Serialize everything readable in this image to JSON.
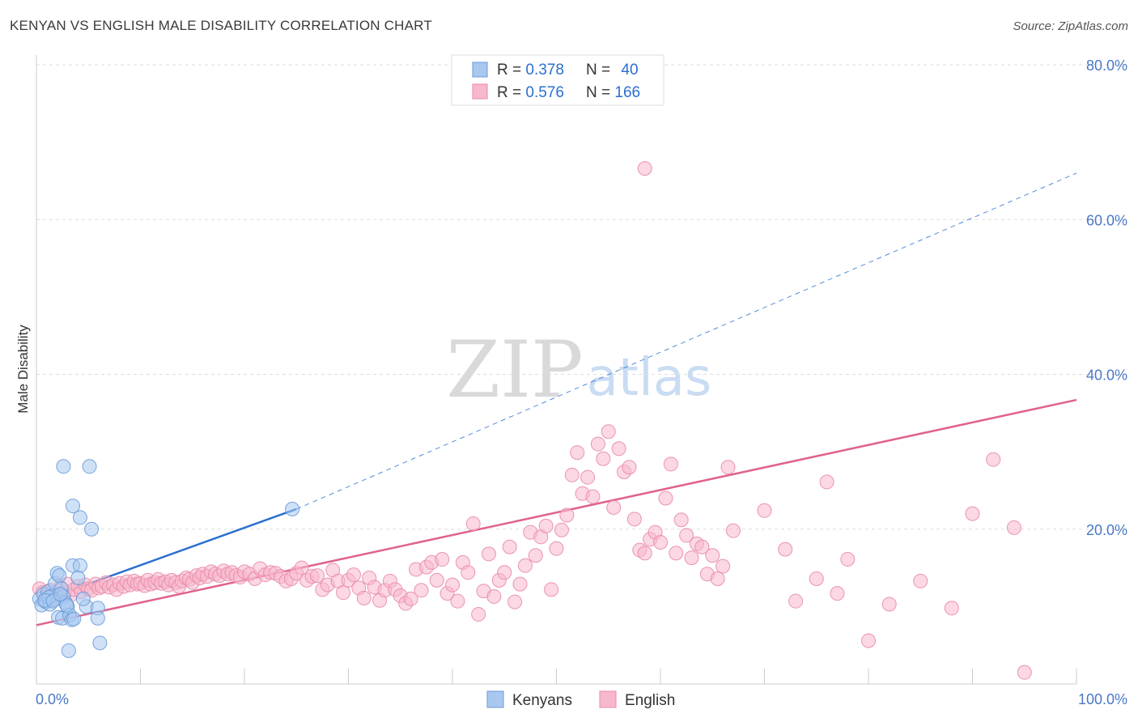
{
  "title": "KENYAN VS ENGLISH MALE DISABILITY CORRELATION CHART",
  "source": "Source: ZipAtlas.com",
  "watermark": {
    "zip": "ZIP",
    "atlas": "atlas"
  },
  "colors": {
    "kenyans_fill": "#a8c8f0",
    "kenyans_stroke": "#6a9ad8",
    "kenyans_line": "#2a6fd0",
    "english_fill": "#f7b8cc",
    "english_stroke": "#e98aa8",
    "english_line": "#e0628e",
    "tick_label": "#4a78c8",
    "grid": "#dddddd"
  },
  "legend_top": [
    {
      "r_label": "R = ",
      "r_value": "0.378",
      "n_label": "N = ",
      "n_value": "40"
    },
    {
      "r_label": "R = ",
      "r_value": "0.576",
      "n_label": "N = ",
      "n_value": "166"
    }
  ],
  "chart_data": {
    "type": "scatter",
    "title": "KENYAN VS ENGLISH MALE DISABILITY CORRELATION CHART",
    "xlabel": "",
    "ylabel": "Male Disability",
    "xlim": [
      0,
      100
    ],
    "ylim": [
      0,
      80
    ],
    "x_tick_labels": [
      "0.0%",
      "100.0%"
    ],
    "y_ticks": [
      20,
      40,
      60,
      80
    ],
    "y_tick_labels": [
      "20.0%",
      "40.0%",
      "60.0%",
      "80.0%"
    ],
    "grid": true,
    "legend_position": "bottom-center",
    "series": [
      {
        "name": "Kenyans",
        "R": 0.378,
        "N": 40,
        "trend": {
          "x": [
            0,
            25
          ],
          "y": [
            10.5,
            22.6
          ],
          "extended_to": [
            100,
            66.0
          ]
        },
        "points": [
          [
            0.3,
            11.0
          ],
          [
            0.5,
            10.2
          ],
          [
            0.7,
            11.6
          ],
          [
            0.9,
            10.6
          ],
          [
            1.1,
            11.9
          ],
          [
            1.3,
            10.3
          ],
          [
            1.5,
            11.4
          ],
          [
            1.7,
            10.9
          ],
          [
            1.8,
            13.0
          ],
          [
            2.0,
            14.3
          ],
          [
            2.2,
            14.0
          ],
          [
            2.4,
            12.3
          ],
          [
            2.6,
            11.3
          ],
          [
            2.8,
            10.5
          ],
          [
            1.2,
            11.2
          ],
          [
            0.8,
            10.8
          ],
          [
            2.1,
            8.6
          ],
          [
            2.5,
            8.5
          ],
          [
            3.0,
            10.0
          ],
          [
            3.2,
            8.9
          ],
          [
            3.4,
            8.3
          ],
          [
            3.6,
            8.4
          ],
          [
            2.9,
            10.2
          ],
          [
            3.5,
            15.3
          ],
          [
            4.2,
            15.3
          ],
          [
            3.5,
            23.0
          ],
          [
            4.2,
            21.5
          ],
          [
            5.3,
            20.0
          ],
          [
            2.6,
            28.1
          ],
          [
            5.1,
            28.1
          ],
          [
            4.0,
            13.7
          ],
          [
            4.8,
            10.0
          ],
          [
            5.9,
            9.8
          ],
          [
            5.9,
            8.5
          ],
          [
            6.1,
            5.3
          ],
          [
            3.1,
            4.3
          ],
          [
            1.6,
            10.7
          ],
          [
            2.3,
            11.6
          ],
          [
            4.5,
            11.0
          ],
          [
            24.6,
            22.6
          ]
        ]
      },
      {
        "name": "English",
        "R": 0.576,
        "N": 166,
        "trend": {
          "x": [
            0,
            100
          ],
          "y": [
            7.6,
            36.7
          ]
        },
        "points": [
          [
            0.3,
            12.3
          ],
          [
            0.6,
            11.8
          ],
          [
            1.0,
            11.4
          ],
          [
            1.3,
            12.1
          ],
          [
            1.7,
            11.0
          ],
          [
            2.0,
            11.6
          ],
          [
            2.3,
            12.5
          ],
          [
            2.7,
            11.8
          ],
          [
            3.0,
            12.9
          ],
          [
            3.3,
            11.5
          ],
          [
            3.6,
            12.2
          ],
          [
            4.0,
            12.6
          ],
          [
            4.3,
            11.9
          ],
          [
            4.7,
            12.8
          ],
          [
            5.0,
            12.3
          ],
          [
            5.3,
            12.1
          ],
          [
            5.7,
            12.9
          ],
          [
            6.0,
            12.4
          ],
          [
            6.3,
            12.6
          ],
          [
            6.7,
            13.1
          ],
          [
            7.0,
            12.5
          ],
          [
            7.4,
            12.8
          ],
          [
            7.7,
            12.2
          ],
          [
            8.0,
            13.0
          ],
          [
            8.4,
            12.6
          ],
          [
            8.7,
            13.2
          ],
          [
            9.0,
            12.8
          ],
          [
            9.4,
            13.3
          ],
          [
            9.7,
            12.9
          ],
          [
            10.0,
            13.0
          ],
          [
            10.4,
            12.7
          ],
          [
            10.7,
            13.4
          ],
          [
            11.0,
            12.9
          ],
          [
            11.4,
            13.1
          ],
          [
            11.7,
            13.5
          ],
          [
            12.0,
            13.0
          ],
          [
            12.4,
            13.2
          ],
          [
            12.7,
            12.8
          ],
          [
            13.0,
            13.4
          ],
          [
            13.4,
            13.1
          ],
          [
            13.7,
            12.6
          ],
          [
            14.0,
            13.3
          ],
          [
            14.4,
            13.7
          ],
          [
            14.7,
            13.5
          ],
          [
            15.0,
            13.1
          ],
          [
            15.4,
            14.0
          ],
          [
            15.7,
            13.7
          ],
          [
            16.0,
            14.2
          ],
          [
            16.4,
            13.9
          ],
          [
            16.8,
            14.5
          ],
          [
            17.2,
            14.2
          ],
          [
            17.6,
            14.0
          ],
          [
            18.0,
            14.6
          ],
          [
            18.4,
            14.2
          ],
          [
            18.8,
            14.4
          ],
          [
            19.2,
            14.0
          ],
          [
            19.6,
            13.8
          ],
          [
            20.0,
            14.5
          ],
          [
            20.5,
            14.2
          ],
          [
            21.0,
            13.6
          ],
          [
            21.5,
            14.9
          ],
          [
            22.0,
            14.1
          ],
          [
            22.5,
            14.4
          ],
          [
            23.0,
            14.3
          ],
          [
            23.5,
            13.9
          ],
          [
            24.0,
            13.3
          ],
          [
            24.5,
            13.6
          ],
          [
            25.0,
            14.3
          ],
          [
            25.5,
            15.0
          ],
          [
            26.0,
            13.4
          ],
          [
            26.5,
            13.9
          ],
          [
            27.0,
            14.0
          ],
          [
            27.5,
            12.2
          ],
          [
            28.0,
            12.8
          ],
          [
            28.5,
            14.7
          ],
          [
            29.0,
            13.3
          ],
          [
            29.5,
            11.8
          ],
          [
            30.0,
            13.4
          ],
          [
            30.5,
            14.1
          ],
          [
            31.0,
            12.4
          ],
          [
            31.5,
            11.1
          ],
          [
            32.0,
            13.7
          ],
          [
            32.5,
            12.5
          ],
          [
            33.0,
            10.8
          ],
          [
            33.5,
            12.1
          ],
          [
            34.0,
            13.3
          ],
          [
            34.5,
            12.2
          ],
          [
            35.0,
            11.4
          ],
          [
            35.5,
            10.4
          ],
          [
            36.0,
            11.0
          ],
          [
            36.5,
            14.8
          ],
          [
            37.0,
            12.1
          ],
          [
            37.5,
            15.1
          ],
          [
            38.0,
            15.7
          ],
          [
            38.5,
            13.4
          ],
          [
            39.0,
            16.1
          ],
          [
            39.5,
            11.7
          ],
          [
            40.0,
            12.8
          ],
          [
            40.5,
            10.7
          ],
          [
            41.0,
            15.7
          ],
          [
            41.5,
            14.4
          ],
          [
            42.0,
            20.7
          ],
          [
            42.5,
            9.0
          ],
          [
            43.0,
            12.0
          ],
          [
            43.5,
            16.8
          ],
          [
            44.0,
            11.3
          ],
          [
            44.5,
            13.4
          ],
          [
            45.0,
            14.4
          ],
          [
            45.5,
            17.7
          ],
          [
            46.0,
            10.6
          ],
          [
            46.5,
            12.9
          ],
          [
            47.0,
            15.3
          ],
          [
            47.5,
            19.6
          ],
          [
            48.0,
            16.6
          ],
          [
            48.5,
            19.0
          ],
          [
            49.0,
            20.4
          ],
          [
            49.5,
            12.2
          ],
          [
            50.0,
            17.5
          ],
          [
            50.5,
            19.9
          ],
          [
            51.0,
            21.8
          ],
          [
            51.5,
            27.0
          ],
          [
            52.0,
            29.9
          ],
          [
            52.5,
            24.6
          ],
          [
            53.0,
            26.7
          ],
          [
            53.5,
            24.2
          ],
          [
            54.0,
            31.0
          ],
          [
            54.5,
            29.1
          ],
          [
            55.0,
            32.6
          ],
          [
            55.5,
            22.8
          ],
          [
            56.0,
            30.4
          ],
          [
            56.5,
            27.4
          ],
          [
            57.0,
            28.0
          ],
          [
            57.5,
            21.3
          ],
          [
            58.0,
            17.3
          ],
          [
            58.5,
            16.9
          ],
          [
            59.0,
            18.7
          ],
          [
            59.5,
            19.6
          ],
          [
            60.0,
            18.3
          ],
          [
            60.5,
            24.0
          ],
          [
            61.0,
            28.4
          ],
          [
            61.5,
            16.9
          ],
          [
            62.0,
            21.2
          ],
          [
            62.5,
            19.2
          ],
          [
            63.0,
            16.3
          ],
          [
            63.5,
            18.1
          ],
          [
            64.0,
            17.7
          ],
          [
            64.5,
            14.2
          ],
          [
            65.0,
            16.6
          ],
          [
            65.5,
            13.6
          ],
          [
            66.0,
            15.2
          ],
          [
            66.5,
            28.0
          ],
          [
            67.0,
            19.8
          ],
          [
            70.0,
            22.4
          ],
          [
            72.0,
            17.4
          ],
          [
            73.0,
            10.7
          ],
          [
            75.0,
            13.6
          ],
          [
            76.0,
            26.1
          ],
          [
            77.0,
            11.7
          ],
          [
            78.0,
            16.1
          ],
          [
            80.0,
            5.6
          ],
          [
            82.0,
            10.3
          ],
          [
            85.0,
            13.3
          ],
          [
            88.0,
            9.8
          ],
          [
            90.0,
            22.0
          ],
          [
            92.0,
            29.0
          ],
          [
            94.0,
            20.2
          ],
          [
            95.0,
            1.5
          ],
          [
            58.5,
            66.6
          ]
        ]
      }
    ]
  },
  "legend_bottom": [
    {
      "label": "Kenyans"
    },
    {
      "label": "English"
    }
  ]
}
